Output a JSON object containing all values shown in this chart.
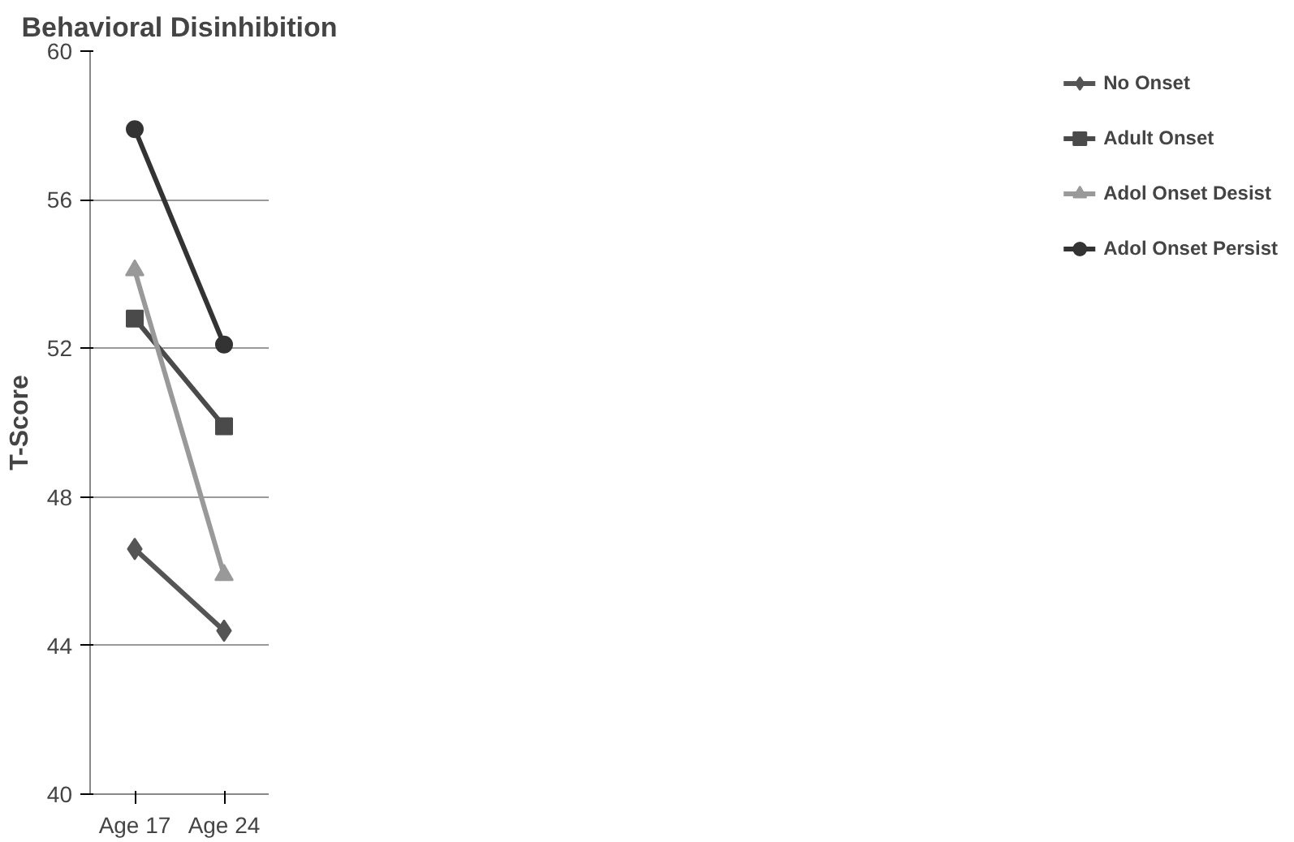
{
  "chart_data": {
    "type": "line",
    "title": "Behavioral Disinhibition",
    "ylabel": "T-Score",
    "categories": [
      "Age 17",
      "Age 24"
    ],
    "series": [
      {
        "name": "No Onset",
        "color": "#555555",
        "marker": "diamond",
        "values": [
          46.6,
          44.4
        ]
      },
      {
        "name": "Adult Onset",
        "color": "#4a4a4a",
        "marker": "square",
        "values": [
          52.8,
          49.9
        ]
      },
      {
        "name": "Adol Onset Desist",
        "color": "#999999",
        "marker": "triangle",
        "values": [
          54.1,
          45.9
        ]
      },
      {
        "name": "Adol Onset Persist",
        "color": "#333333",
        "marker": "circle",
        "values": [
          57.9,
          52.1
        ]
      }
    ],
    "ylim": [
      40,
      60
    ],
    "yticks": [
      40,
      44,
      48,
      52,
      56,
      60
    ],
    "grid": "y",
    "legend": "right"
  }
}
